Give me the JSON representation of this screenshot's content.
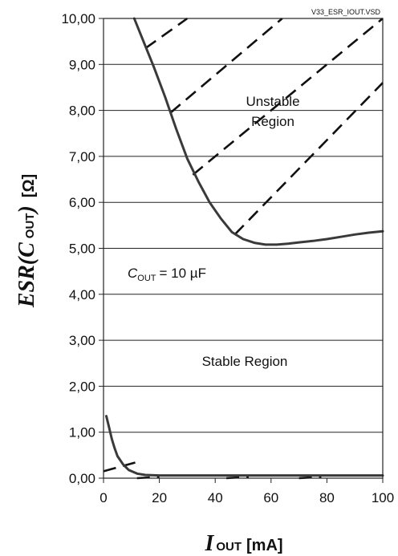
{
  "chart_data": {
    "type": "line",
    "file_ref": "V33_ESR_IOUT.VSD",
    "xlabel": {
      "symbol": "I",
      "sub": "OUT",
      "unit": "[mA]"
    },
    "ylabel": {
      "text": "ESR(C",
      "sub": "OUT",
      "close": ")",
      "unit": "[Ω]"
    },
    "xlim": [
      0,
      100
    ],
    "ylim": [
      0,
      10
    ],
    "x_ticks": [
      "0",
      "20",
      "40",
      "60",
      "80",
      "100"
    ],
    "y_ticks": [
      "0,00",
      "1,00",
      "2,00",
      "3,00",
      "4,00",
      "5,00",
      "6,00",
      "7,00",
      "8,00",
      "9,00",
      "10,00"
    ],
    "annotations": {
      "unstable_line1": "Unstable",
      "unstable_line2": "Region",
      "stable": "Stable Region",
      "cout_symbol": "C",
      "cout_sub": "OUT",
      "cout_value": "= 10 µF"
    },
    "series": [
      {
        "kind": "upper-boundary",
        "points": [
          [
            11,
            10.0
          ],
          [
            14,
            9.55
          ],
          [
            18,
            8.95
          ],
          [
            22,
            8.3
          ],
          [
            26,
            7.6
          ],
          [
            30,
            6.95
          ],
          [
            34,
            6.45
          ],
          [
            38,
            6.0
          ],
          [
            42,
            5.65
          ],
          [
            46,
            5.35
          ],
          [
            50,
            5.2
          ],
          [
            54,
            5.12
          ],
          [
            58,
            5.08
          ],
          [
            62,
            5.08
          ],
          [
            66,
            5.1
          ],
          [
            70,
            5.13
          ],
          [
            75,
            5.16
          ],
          [
            80,
            5.2
          ],
          [
            85,
            5.25
          ],
          [
            90,
            5.3
          ],
          [
            95,
            5.34
          ],
          [
            100,
            5.37
          ]
        ]
      },
      {
        "kind": "lower-boundary",
        "points": [
          [
            1,
            1.35
          ],
          [
            2,
            1.1
          ],
          [
            3,
            0.85
          ],
          [
            4,
            0.65
          ],
          [
            5,
            0.48
          ],
          [
            7,
            0.3
          ],
          [
            9,
            0.18
          ],
          [
            12,
            0.1
          ],
          [
            15,
            0.07
          ],
          [
            20,
            0.06
          ],
          [
            30,
            0.06
          ],
          [
            50,
            0.06
          ],
          [
            75,
            0.06
          ],
          [
            100,
            0.06
          ]
        ]
      }
    ],
    "hatch_lines": [
      [
        [
          15,
          9.35
        ],
        [
          30,
          10.0
        ]
      ],
      [
        [
          24,
          7.95
        ],
        [
          64,
          10.0
        ]
      ],
      [
        [
          32,
          6.6
        ],
        [
          100,
          10.0
        ]
      ],
      [
        [
          47,
          5.3
        ],
        [
          100,
          8.6
        ]
      ],
      [
        [
          0,
          0.15
        ],
        [
          12,
          0.35
        ]
      ],
      [
        [
          12,
          0.0
        ],
        [
          20,
          0.03
        ]
      ],
      [
        [
          44,
          0.0
        ],
        [
          52,
          0.03
        ]
      ],
      [
        [
          70,
          0.0
        ],
        [
          78,
          0.03
        ]
      ]
    ]
  }
}
